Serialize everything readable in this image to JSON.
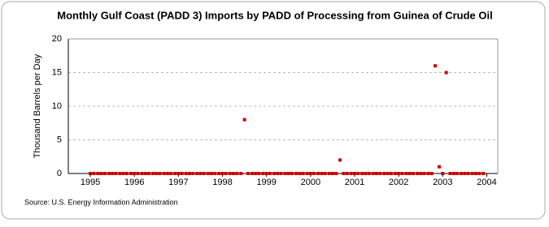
{
  "chart_data": {
    "type": "scatter",
    "title": "Monthly Gulf Coast (PADD 3) Imports by PADD of Processing from Guinea of Crude Oil",
    "y_label": "Thousand Barrels per Day",
    "source": "Source: U.S. Energy Information Administration",
    "color": "#cc0000",
    "x": [
      1995,
      1995.08,
      1995.17,
      1995.25,
      1995.33,
      1995.42,
      1995.5,
      1995.58,
      1995.67,
      1995.75,
      1995.83,
      1995.92,
      1996,
      1996.08,
      1996.17,
      1996.25,
      1996.33,
      1996.42,
      1996.5,
      1996.58,
      1996.67,
      1996.75,
      1996.83,
      1996.92,
      1997,
      1997.08,
      1997.17,
      1997.25,
      1997.33,
      1997.42,
      1997.5,
      1997.58,
      1997.67,
      1997.75,
      1997.83,
      1997.92,
      1998,
      1998.08,
      1998.17,
      1998.25,
      1998.33,
      1998.42,
      1998.5,
      1998.58,
      1998.67,
      1998.75,
      1998.83,
      1998.92,
      1999,
      1999.08,
      1999.17,
      1999.25,
      1999.33,
      1999.42,
      1999.5,
      1999.58,
      1999.67,
      1999.75,
      1999.83,
      1999.92,
      2000,
      2000.08,
      2000.17,
      2000.25,
      2000.33,
      2000.42,
      2000.5,
      2000.58,
      2000.67,
      2000.75,
      2000.83,
      2000.92,
      2001,
      2001.08,
      2001.17,
      2001.25,
      2001.33,
      2001.42,
      2001.5,
      2001.58,
      2001.67,
      2001.75,
      2001.83,
      2001.92,
      2002,
      2002.08,
      2002.17,
      2002.25,
      2002.33,
      2002.42,
      2002.5,
      2002.58,
      2002.67,
      2002.75,
      2002.83,
      2002.92,
      2003,
      2003.08,
      2003.17,
      2003.25,
      2003.33,
      2003.42,
      2003.5,
      2003.58,
      2003.67,
      2003.75,
      2003.83,
      2003.92
    ],
    "values": [
      0,
      0,
      0,
      0,
      0,
      0,
      0,
      0,
      0,
      0,
      0,
      0,
      0,
      0,
      0,
      0,
      0,
      0,
      0,
      0,
      0,
      0,
      0,
      0,
      0,
      0,
      0,
      0,
      0,
      0,
      0,
      0,
      0,
      0,
      0,
      0,
      0,
      0,
      0,
      0,
      0,
      0,
      8,
      0,
      0,
      0,
      0,
      0,
      0,
      0,
      0,
      0,
      0,
      0,
      0,
      0,
      0,
      0,
      0,
      0,
      0,
      0,
      0,
      0,
      0,
      0,
      0,
      0,
      2,
      0,
      0,
      0,
      0,
      0,
      0,
      0,
      0,
      0,
      0,
      0,
      0,
      0,
      0,
      0,
      0,
      0,
      0,
      0,
      0,
      0,
      0,
      0,
      0,
      0,
      16,
      1,
      0,
      15,
      0,
      0,
      0,
      0,
      0,
      0,
      0,
      0,
      0,
      0
    ],
    "xlim": [
      1994.5,
      2004.25
    ],
    "xticks": [
      1995,
      1996,
      1997,
      1998,
      1999,
      2000,
      2001,
      2002,
      2003,
      2004
    ],
    "ylim": [
      0,
      20
    ],
    "yticks": [
      0,
      5,
      10,
      15,
      20
    ],
    "grid": true
  }
}
